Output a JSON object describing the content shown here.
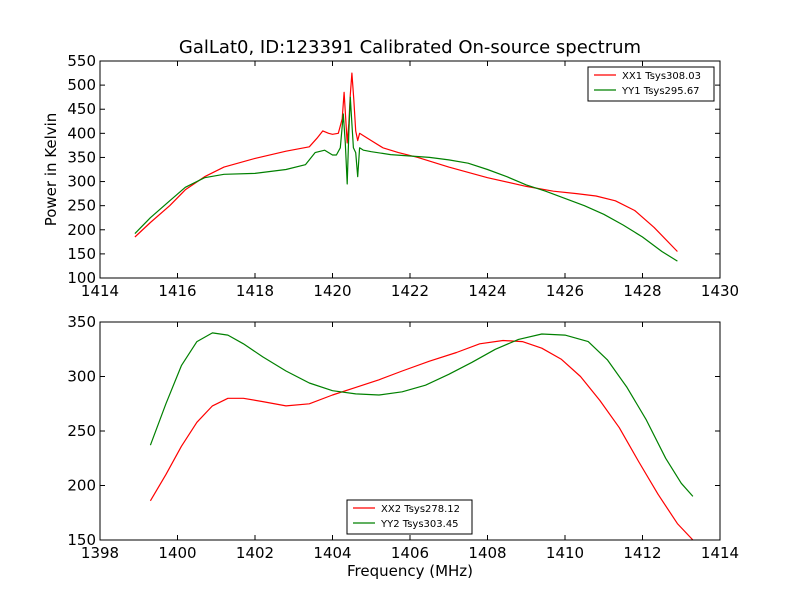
{
  "title": "GalLat0, ID:123391 Calibrated On-source spectrum",
  "chart_data": [
    {
      "type": "line",
      "title": "GalLat0, ID:123391 Calibrated On-source spectrum",
      "xlabel": "",
      "ylabel": "Power in Kelvin",
      "xlim": [
        1414,
        1430
      ],
      "ylim": [
        100,
        550
      ],
      "xticks": [
        1414,
        1416,
        1418,
        1420,
        1422,
        1424,
        1426,
        1428,
        1430
      ],
      "yticks": [
        100,
        150,
        200,
        250,
        300,
        350,
        400,
        450,
        500,
        550
      ],
      "legend_position": "top-right",
      "series": [
        {
          "name": "XX1 Tsys308.03",
          "color": "#ff0000",
          "x": [
            1414.9,
            1415.3,
            1415.8,
            1416.2,
            1416.7,
            1417.2,
            1418.0,
            1418.8,
            1419.4,
            1419.6,
            1419.75,
            1419.9,
            1420.0,
            1420.15,
            1420.25,
            1420.3,
            1420.38,
            1420.42,
            1420.46,
            1420.5,
            1420.55,
            1420.6,
            1420.65,
            1420.7,
            1420.8,
            1421.0,
            1421.3,
            1421.7,
            1422.2,
            1423.0,
            1424.0,
            1425.0,
            1425.7,
            1426.3,
            1426.8,
            1427.3,
            1427.8,
            1428.3,
            1428.9
          ],
          "values": [
            185,
            215,
            250,
            283,
            310,
            330,
            348,
            363,
            372,
            390,
            405,
            400,
            398,
            400,
            430,
            485,
            380,
            420,
            480,
            525,
            470,
            405,
            385,
            400,
            395,
            385,
            370,
            360,
            350,
            330,
            308,
            290,
            280,
            275,
            270,
            260,
            240,
            205,
            155
          ]
        },
        {
          "name": "YY1 Tsys295.67",
          "color": "#008000",
          "x": [
            1414.9,
            1415.3,
            1415.8,
            1416.2,
            1416.7,
            1417.2,
            1418.0,
            1418.8,
            1419.3,
            1419.55,
            1419.8,
            1420.0,
            1420.1,
            1420.2,
            1420.28,
            1420.33,
            1420.38,
            1420.42,
            1420.46,
            1420.5,
            1420.54,
            1420.6,
            1420.65,
            1420.7,
            1420.8,
            1421.0,
            1421.5,
            1422.0,
            1422.5,
            1423.0,
            1423.5,
            1424.0,
            1424.5,
            1425.0,
            1425.5,
            1426.0,
            1426.5,
            1427.0,
            1427.5,
            1428.0,
            1428.5,
            1428.9
          ],
          "values": [
            192,
            225,
            260,
            288,
            308,
            315,
            317,
            325,
            335,
            360,
            365,
            355,
            355,
            370,
            440,
            380,
            295,
            400,
            475,
            420,
            370,
            360,
            310,
            370,
            365,
            362,
            356,
            353,
            350,
            345,
            338,
            325,
            310,
            293,
            280,
            265,
            250,
            232,
            210,
            185,
            155,
            135
          ]
        }
      ]
    },
    {
      "type": "line",
      "title": "",
      "xlabel": "Frequency (MHz)",
      "ylabel": "",
      "xlim": [
        1398,
        1414
      ],
      "ylim": [
        150,
        350
      ],
      "xticks": [
        1398,
        1400,
        1402,
        1404,
        1406,
        1408,
        1410,
        1412,
        1414
      ],
      "yticks": [
        150,
        200,
        250,
        300,
        350
      ],
      "legend_position": "bottom-center",
      "series": [
        {
          "name": "XX2 Tsys278.12",
          "color": "#ff0000",
          "x": [
            1399.3,
            1399.7,
            1400.1,
            1400.5,
            1400.9,
            1401.3,
            1401.7,
            1402.2,
            1402.8,
            1403.4,
            1404.0,
            1404.6,
            1405.2,
            1405.8,
            1406.5,
            1407.2,
            1407.8,
            1408.4,
            1408.9,
            1409.4,
            1409.9,
            1410.4,
            1410.9,
            1411.4,
            1411.9,
            1412.4,
            1412.9,
            1413.3
          ],
          "values": [
            186,
            210,
            236,
            258,
            273,
            280,
            280,
            277,
            273,
            275,
            283,
            290,
            297,
            305,
            314,
            322,
            330,
            333,
            332,
            326,
            316,
            300,
            278,
            253,
            222,
            192,
            165,
            150
          ]
        },
        {
          "name": "YY2 Tsys303.45",
          "color": "#008000",
          "x": [
            1399.3,
            1399.7,
            1400.1,
            1400.5,
            1400.9,
            1401.3,
            1401.7,
            1402.2,
            1402.8,
            1403.4,
            1404.0,
            1404.6,
            1405.2,
            1405.8,
            1406.4,
            1407.0,
            1407.6,
            1408.2,
            1408.8,
            1409.4,
            1410.0,
            1410.6,
            1411.1,
            1411.6,
            1412.1,
            1412.6,
            1413.0,
            1413.3
          ],
          "values": [
            237,
            275,
            310,
            332,
            340,
            338,
            330,
            318,
            305,
            294,
            287,
            284,
            283,
            286,
            292,
            302,
            313,
            325,
            334,
            339,
            338,
            332,
            315,
            290,
            260,
            225,
            202,
            190
          ]
        }
      ]
    }
  ]
}
